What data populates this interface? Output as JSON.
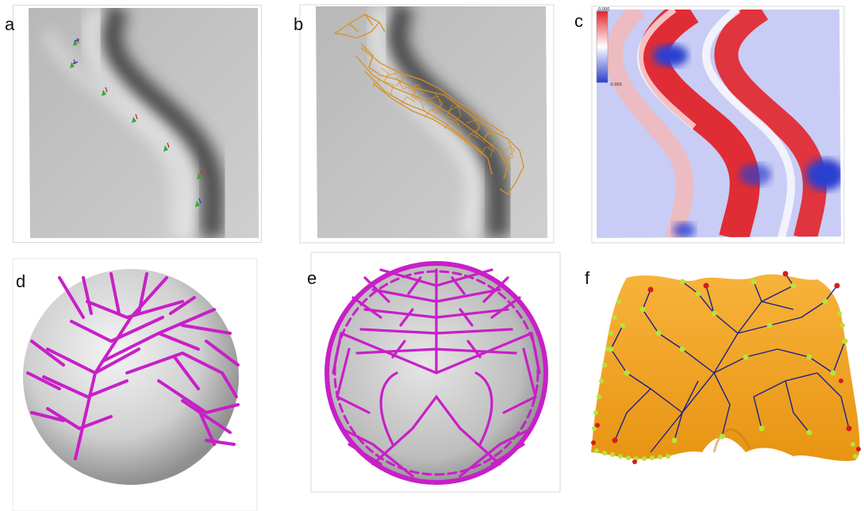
{
  "panels": [
    {
      "label": "a"
    },
    {
      "label": "b"
    },
    {
      "label": "c",
      "colorbar": {
        "max": "0.000",
        "min": "-0.001"
      }
    },
    {
      "label": "d"
    },
    {
      "label": "e"
    },
    {
      "label": "f"
    }
  ],
  "colors": {
    "surface_gray": "#c9c9c9",
    "network_orange": "#d9901f",
    "branch_magenta": "#c81fc8",
    "sphere_gray": "#cfcfcf",
    "heat_red": "#e2232a",
    "heat_blue": "#2b3fd0",
    "terrain_orange": "#f2a221",
    "tree_blue": "#1a1f8c",
    "node_green": "#b5e43a",
    "node_red": "#d21e1e"
  }
}
